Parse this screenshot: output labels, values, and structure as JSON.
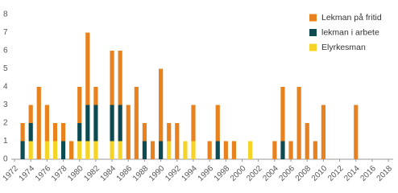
{
  "chart_data": {
    "type": "stacked-bar",
    "categories": [
      "1972",
      null,
      "1974",
      null,
      "1976",
      null,
      "1978",
      null,
      "1980",
      null,
      "1982",
      null,
      "1984",
      null,
      "1986",
      null,
      "1988",
      null,
      "1990",
      null,
      "1992",
      null,
      "1994",
      null,
      "1996",
      null,
      "1998",
      null,
      "2000",
      null,
      "2002",
      null,
      "2004",
      null,
      "2006",
      null,
      "2008",
      null,
      "2010",
      null,
      "2012",
      null,
      "2014",
      null,
      "2016",
      null,
      "2018"
    ],
    "series": [
      {
        "name": "Lekman på fritid",
        "color": "#e8821e",
        "values": [
          0,
          1,
          1,
          4,
          2,
          1,
          1,
          1,
          2,
          4,
          1,
          0,
          3,
          3,
          3,
          4,
          1,
          1,
          4,
          1,
          2,
          0,
          2,
          0,
          1,
          2,
          1,
          1,
          0,
          0,
          0,
          0,
          1,
          3,
          1,
          4,
          2,
          1,
          3,
          0,
          0,
          0,
          3,
          0,
          0,
          0,
          0
        ]
      },
      {
        "name": "lekman i arbete",
        "color": "#0d4a52",
        "values": [
          0,
          1,
          1,
          0,
          0,
          0,
          1,
          0,
          1,
          2,
          2,
          0,
          2,
          2,
          0,
          0,
          1,
          0,
          1,
          0,
          0,
          0,
          0,
          0,
          0,
          1,
          0,
          0,
          0,
          0,
          0,
          0,
          0,
          1,
          0,
          0,
          0,
          0,
          0,
          0,
          0,
          0,
          0,
          0,
          0,
          0,
          0
        ]
      },
      {
        "name": "Elyrkesman",
        "color": "#f5d327",
        "values": [
          0,
          0,
          1,
          0,
          1,
          1,
          0,
          0,
          1,
          1,
          1,
          0,
          1,
          1,
          0,
          0,
          0,
          0,
          0,
          1,
          0,
          1,
          1,
          0,
          0,
          0,
          0,
          0,
          0,
          1,
          0,
          0,
          0,
          0,
          0,
          0,
          0,
          0,
          0,
          0,
          0,
          0,
          0,
          0,
          0,
          0,
          0
        ]
      }
    ],
    "ylim": [
      0,
      8
    ],
    "yticks": [
      0,
      1,
      2,
      3,
      4,
      5,
      6,
      7,
      8
    ],
    "legend": "top-right"
  }
}
